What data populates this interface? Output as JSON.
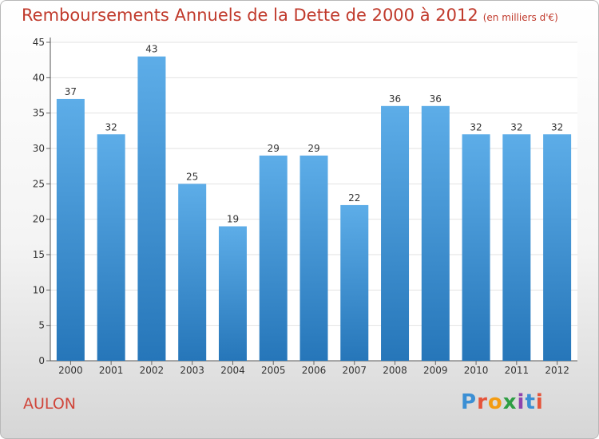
{
  "title": "Remboursements Annuels de la Dette de 2000 à 2012",
  "subtitle_unit": "(en milliers d'€)",
  "location": "AULON",
  "logo": {
    "text": "Proxiti",
    "letter_colors": [
      "#3b8fd4",
      "#e5543a",
      "#f39c12",
      "#2e9e44",
      "#8e44ad",
      "#3b8fd4",
      "#e5543a"
    ]
  },
  "colors": {
    "bar_top": "#5dade8",
    "bar_bottom": "#2676b9",
    "title": "#c0392b"
  },
  "chart_data": {
    "type": "bar",
    "categories": [
      "2000",
      "2001",
      "2002",
      "2003",
      "2004",
      "2005",
      "2006",
      "2007",
      "2008",
      "2009",
      "2010",
      "2011",
      "2012"
    ],
    "values": [
      37,
      32,
      43,
      25,
      19,
      29,
      29,
      22,
      36,
      36,
      32,
      32,
      32
    ],
    "ylim": [
      0,
      45
    ],
    "yticks": [
      0,
      5,
      10,
      15,
      20,
      25,
      30,
      35,
      40,
      45
    ],
    "grid": true
  }
}
